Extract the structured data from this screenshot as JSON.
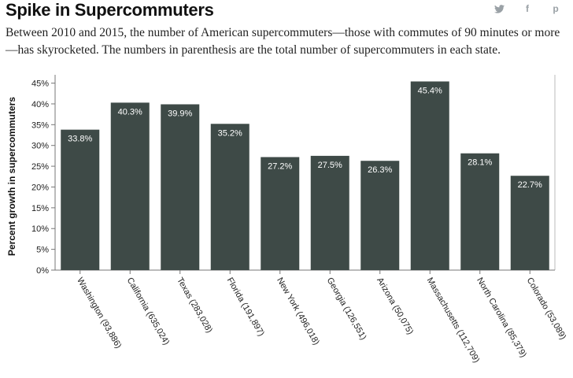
{
  "header": {
    "title": "Spike in Supercommuters",
    "subtitle": "Between 2010 and 2015, the number of American supercommuters—those with commutes of 90 minutes or more—has skyrocketed. The numbers in parenthesis are the total number of supercommuters in each state.",
    "share": [
      {
        "name": "twitter-icon",
        "glyph": "🐦"
      },
      {
        "name": "facebook-icon",
        "glyph": "f"
      },
      {
        "name": "pinterest-icon",
        "glyph": "p"
      }
    ]
  },
  "chart_data": {
    "type": "bar",
    "title": "",
    "xlabel": "",
    "ylabel": "Percent growth in supercommuters",
    "ylim": [
      0,
      47
    ],
    "yticks": [
      0,
      5,
      10,
      15,
      20,
      25,
      30,
      35,
      40,
      45
    ],
    "ytick_labels": [
      "0%",
      "5%",
      "10%",
      "15%",
      "20%",
      "25%",
      "30%",
      "35%",
      "40%",
      "45%"
    ],
    "grid": false,
    "bar_color": "#3e4a47",
    "categories": [
      "Washington (93,886)",
      "California (635,024)",
      "Texas (283,028)",
      "Florida (191,897)",
      "New York (496,018)",
      "Georgia (126,551)",
      "Arizona (50,075)",
      "Massachusetts (112,709)",
      "North Carolina (85,379)",
      "Colorado (53,089)"
    ],
    "values": [
      33.8,
      40.3,
      39.9,
      35.2,
      27.2,
      27.5,
      26.3,
      45.4,
      28.1,
      22.7
    ],
    "value_labels": [
      "33.8%",
      "40.3%",
      "39.9%",
      "35.2%",
      "27.2%",
      "27.5%",
      "26.3%",
      "45.4%",
      "28.1%",
      "22.7%"
    ]
  }
}
